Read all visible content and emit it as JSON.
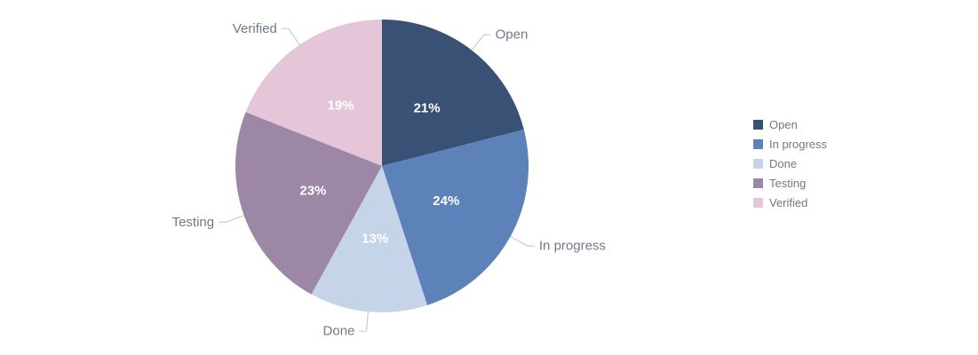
{
  "chart_data": {
    "type": "pie",
    "title": "",
    "direction": "clockwise",
    "start_angle": "top",
    "categories": [
      "Open",
      "In progress",
      "Done",
      "Testing",
      "Verified"
    ],
    "values": [
      21,
      24,
      13,
      23,
      19
    ],
    "slices": [
      {
        "label": "Open",
        "value": 21,
        "percent_label": "21%",
        "color": "#3a5176"
      },
      {
        "label": "In progress",
        "value": 24,
        "percent_label": "24%",
        "color": "#5d81b9"
      },
      {
        "label": "Done",
        "value": 13,
        "percent_label": "13%",
        "color": "#c5d4e8"
      },
      {
        "label": "Testing",
        "value": 23,
        "percent_label": "23%",
        "color": "#9c88a6"
      },
      {
        "label": "Verified",
        "value": 19,
        "percent_label": "19%",
        "color": "#e4c6d8"
      }
    ],
    "legend": {
      "position": "right",
      "items": [
        "Open",
        "In progress",
        "Done",
        "Testing",
        "Verified"
      ]
    }
  },
  "styles": {
    "background": "#ffffff",
    "callout_text_color": "#6d7a88",
    "legend_text_color": "#6d7a88",
    "leader_line_color": "#c9ccd1",
    "percent_text_color": "#ffffff"
  }
}
